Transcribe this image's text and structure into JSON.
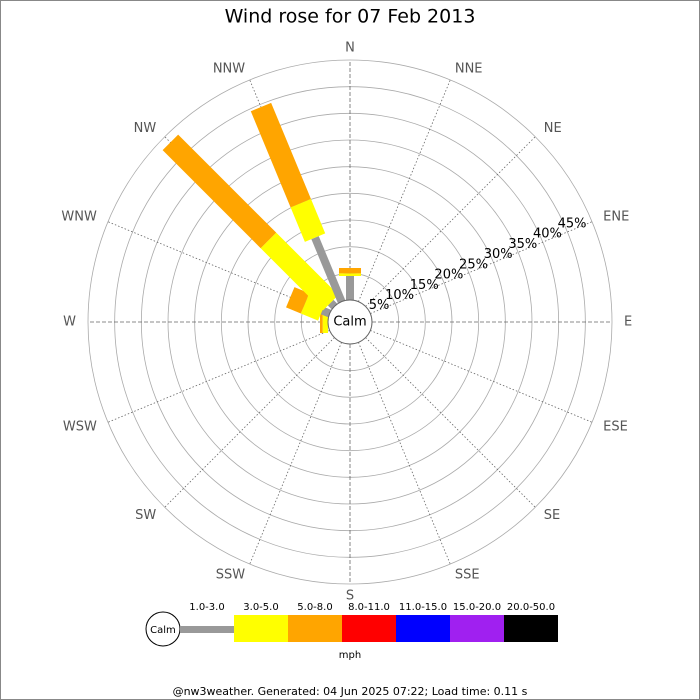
{
  "chart_data": {
    "type": "windrose",
    "title": "Wind rose for 07 Feb 2013",
    "directions": [
      "N",
      "NNE",
      "NE",
      "ENE",
      "E",
      "ESE",
      "SE",
      "SSE",
      "S",
      "SSW",
      "SW",
      "WSW",
      "W",
      "WNW",
      "NW",
      "NNW"
    ],
    "rlim": [
      0,
      45
    ],
    "rticks": [
      {
        "value": 5,
        "label": "5%"
      },
      {
        "value": 10,
        "label": "10%"
      },
      {
        "value": 15,
        "label": "15%"
      },
      {
        "value": 20,
        "label": "20%"
      },
      {
        "value": 25,
        "label": "25%"
      },
      {
        "value": 30,
        "label": "30%"
      },
      {
        "value": 35,
        "label": "35%"
      },
      {
        "value": 40,
        "label": "40%"
      },
      {
        "value": 45,
        "label": "45%"
      }
    ],
    "calm_label": "Calm",
    "series": [
      {
        "name": "1.0-3.0",
        "color": "#999999",
        "values": [
          4.5,
          0,
          0,
          0,
          0,
          0,
          0,
          0,
          0,
          0,
          0,
          0,
          0,
          1.5,
          1,
          13
        ]
      },
      {
        "name": "3.0-5.0",
        "color": "#ffff00",
        "values": [
          0.5,
          0,
          0,
          0,
          0,
          0,
          0,
          0,
          0,
          0,
          0,
          0,
          1,
          3.5,
          16.5,
          7
        ]
      },
      {
        "name": "5.0-8.0",
        "color": "#ffa500",
        "values": [
          1,
          0,
          0,
          0,
          0,
          0,
          0,
          0,
          0,
          0,
          0,
          0,
          0.5,
          3,
          26,
          19.5
        ]
      },
      {
        "name": "8.0-11.0",
        "color": "#ff0000",
        "values": [
          0,
          0,
          0,
          0,
          0,
          0,
          0,
          0,
          0,
          0,
          0,
          0,
          0,
          0,
          0,
          0
        ]
      },
      {
        "name": "11.0-15.0",
        "color": "#0000ff",
        "values": [
          0,
          0,
          0,
          0,
          0,
          0,
          0,
          0,
          0,
          0,
          0,
          0,
          0,
          0,
          0,
          0
        ]
      },
      {
        "name": "15.0-20.0",
        "color": "#a020f0",
        "values": [
          0,
          0,
          0,
          0,
          0,
          0,
          0,
          0,
          0,
          0,
          0,
          0,
          0,
          0,
          0,
          0
        ]
      },
      {
        "name": "20.0-50.0",
        "color": "#000000",
        "values": [
          0,
          0,
          0,
          0,
          0,
          0,
          0,
          0,
          0,
          0,
          0,
          0,
          0,
          0,
          0,
          0
        ]
      }
    ],
    "legend_unit": "mph",
    "footer": "@nw3weather. Generated: 04 Jun 2025 07:22; Load time: 0.11 s"
  }
}
